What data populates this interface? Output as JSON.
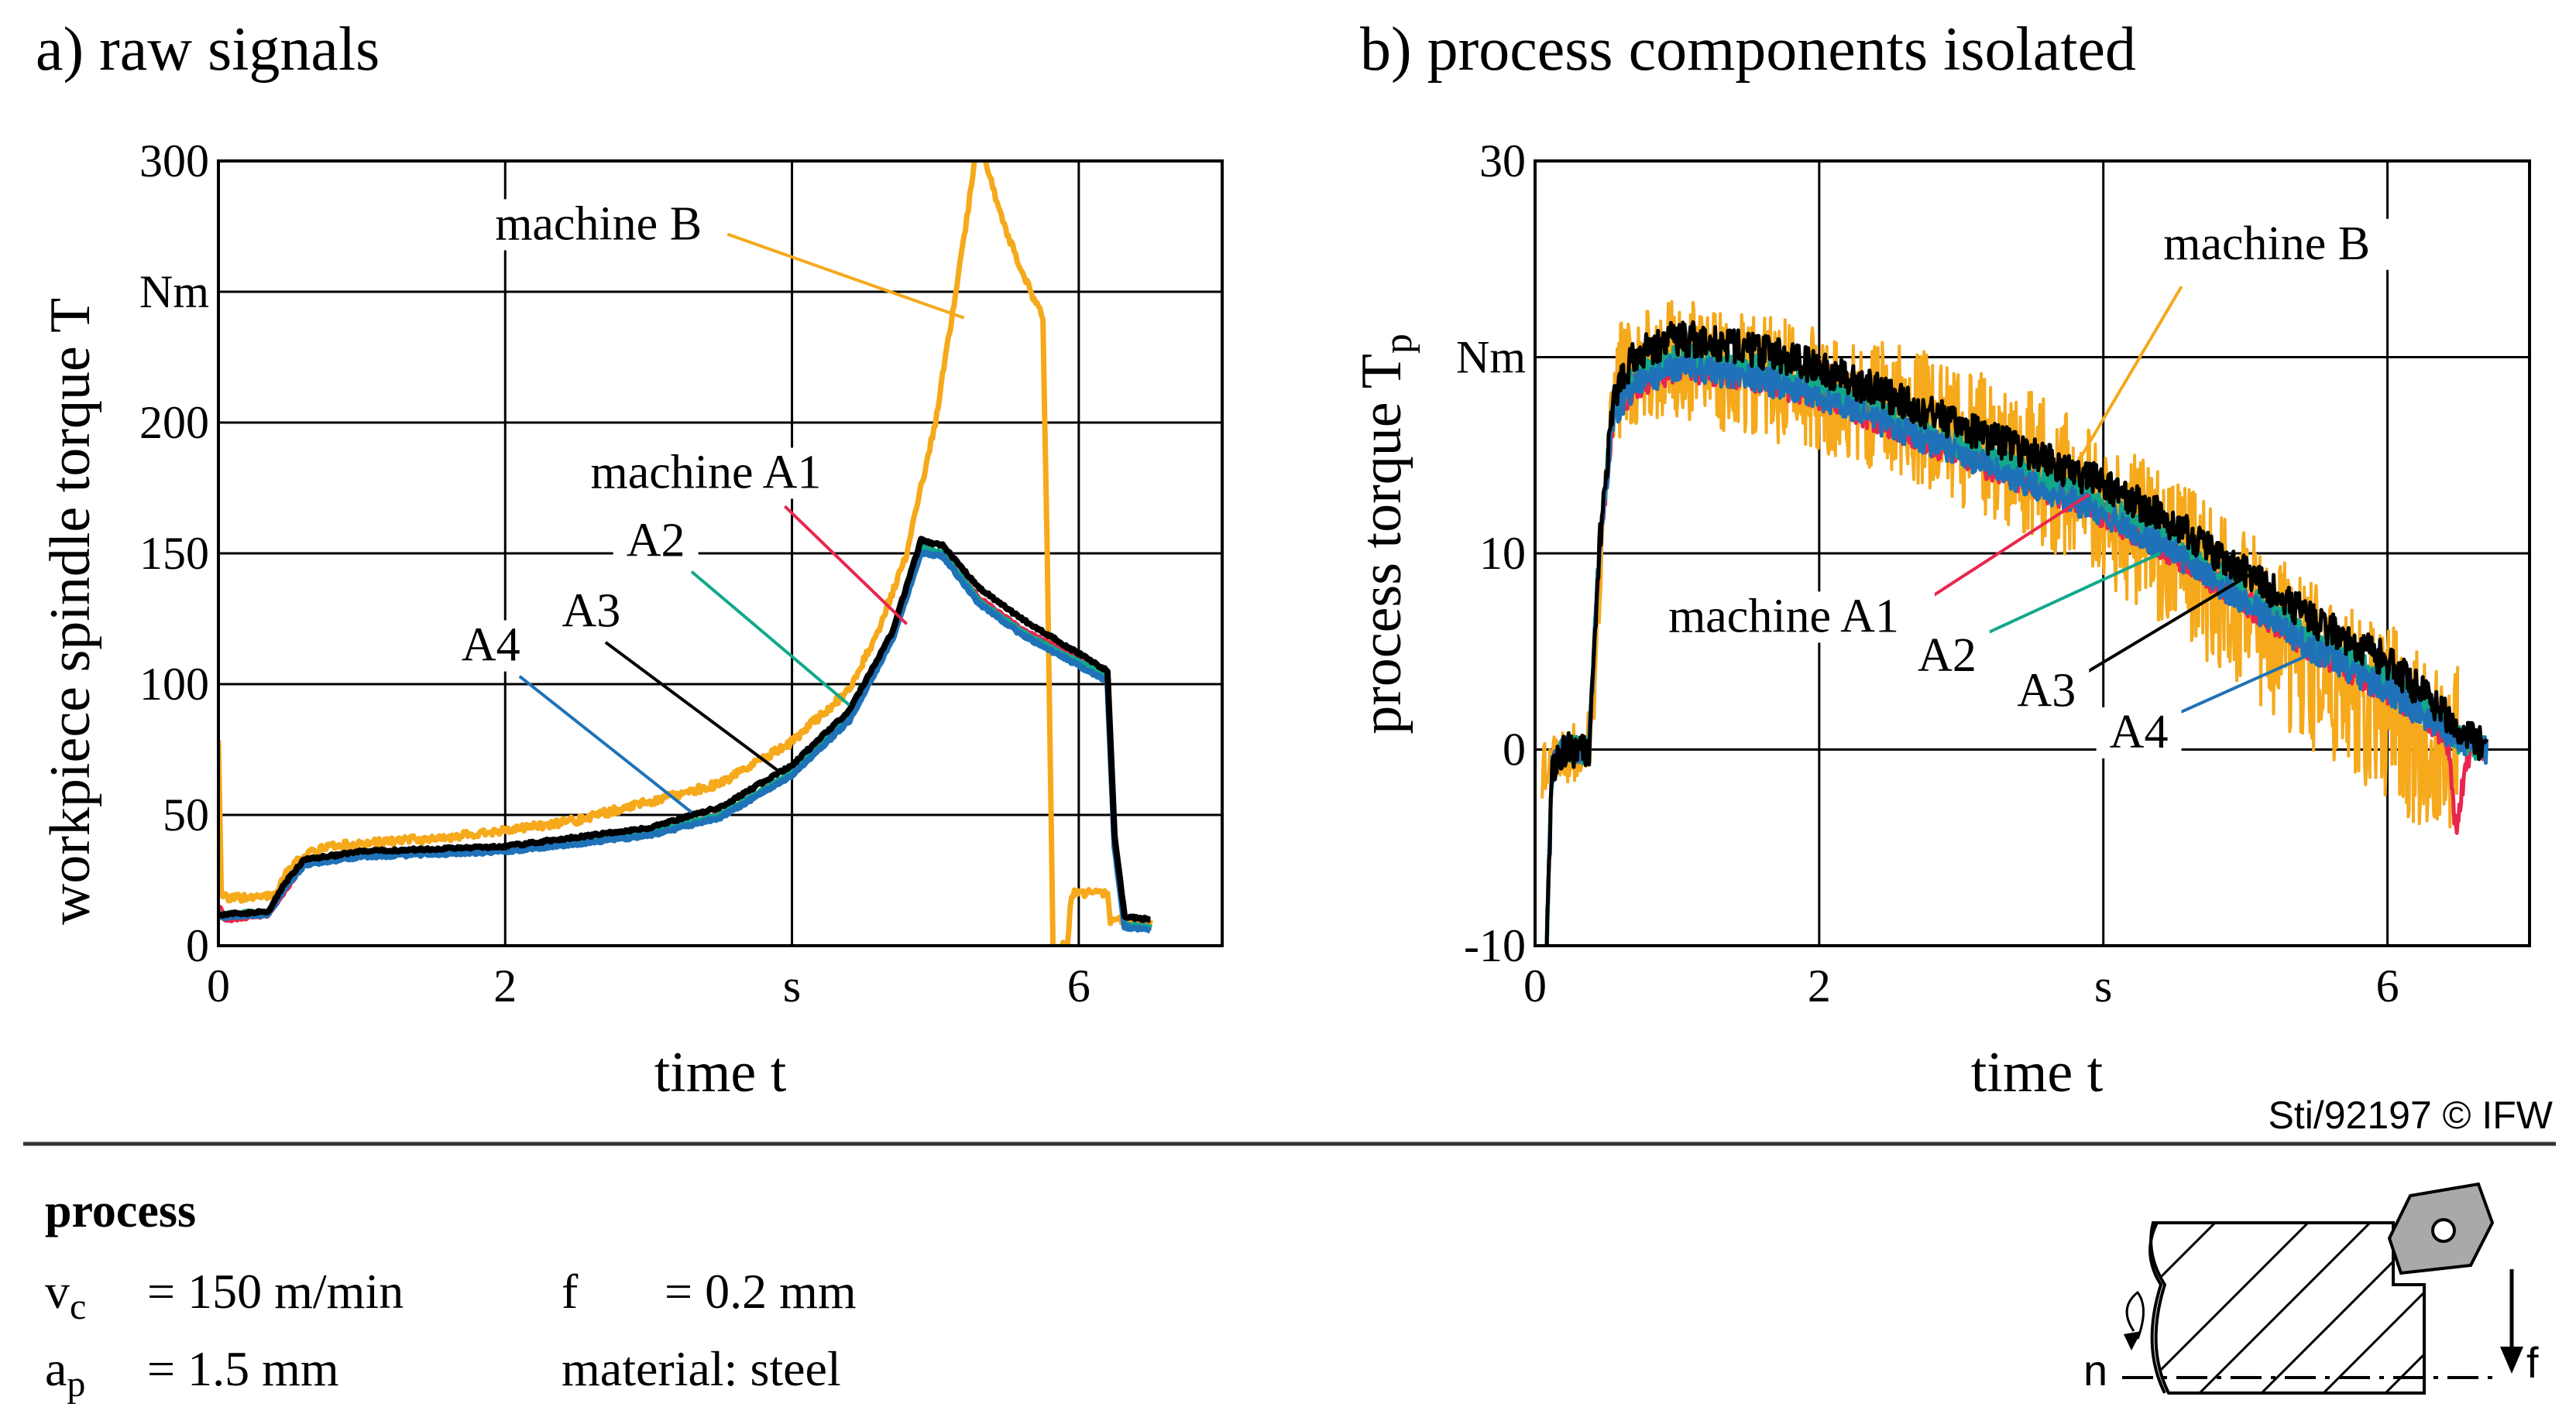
{
  "colors": {
    "machine_B": "#f5a91b",
    "machine_A1": "#e8264d",
    "A2": "#12a88a",
    "A3": "#000000",
    "A4": "#1f72b8",
    "grid": "#000000",
    "insert": "#a9a9a9"
  },
  "chart_data": [
    {
      "type": "line",
      "title": "a) raw signals",
      "xlabel": "time t",
      "xunit": "s",
      "ylabel": "workpiece spindle torque T",
      "yunit": "Nm",
      "xlim": [
        0,
        7
      ],
      "ylim": [
        0,
        300
      ],
      "xticks": [
        "0",
        "2",
        "s",
        "6"
      ],
      "yticks": [
        "0",
        "50",
        "100",
        "150",
        "200",
        "Nm",
        "300"
      ],
      "grid": true,
      "series": [
        {
          "name": "machine B",
          "color_key": "machine_B",
          "x": [
            0,
            0.02,
            0.06,
            0.4,
            0.45,
            0.6,
            0.8,
            1.0,
            1.5,
            2.0,
            2.5,
            3.0,
            3.5,
            4.0,
            4.4,
            4.6,
            4.8,
            5.0,
            5.2,
            5.3,
            5.45,
            5.6,
            5.75,
            5.78,
            5.82,
            5.92,
            5.95,
            6.2,
            6.22,
            6.5
          ],
          "y": [
            80,
            20,
            18,
            19,
            26,
            35,
            38,
            39,
            41,
            44,
            48,
            55,
            62,
            78,
            98,
            120,
            150,
            200,
            270,
            310,
            280,
            258,
            240,
            150,
            0,
            0,
            20,
            20,
            10,
            9
          ]
        },
        {
          "name": "machine A1",
          "color_key": "machine_A1",
          "x": [
            0,
            0.05,
            0.35,
            0.45,
            0.6,
            1.0,
            2.0,
            3.0,
            3.5,
            4.0,
            4.4,
            4.7,
            4.9,
            5.05,
            5.3,
            5.6,
            5.9,
            6.2,
            6.25,
            6.32,
            6.5
          ],
          "y": [
            15,
            10,
            12,
            20,
            32,
            35,
            37,
            43,
            50,
            66,
            87,
            118,
            151,
            150,
            133,
            121,
            112,
            104,
            40,
            8,
            7
          ]
        },
        {
          "name": "A2",
          "color_key": "A2",
          "x": [
            0,
            0.05,
            0.35,
            0.45,
            0.6,
            1.0,
            2.0,
            3.0,
            3.5,
            4.0,
            4.4,
            4.7,
            4.9,
            5.05,
            5.3,
            5.6,
            5.9,
            6.2,
            6.25,
            6.32,
            6.5
          ],
          "y": [
            12,
            12,
            13,
            22,
            32,
            35,
            37,
            43,
            50,
            66,
            87,
            118,
            152,
            150,
            132,
            120,
            111,
            103,
            40,
            8,
            7
          ]
        },
        {
          "name": "A3",
          "color_key": "A3",
          "x": [
            0,
            0.05,
            0.35,
            0.45,
            0.6,
            1.0,
            2.0,
            3.0,
            3.5,
            4.0,
            4.4,
            4.7,
            4.9,
            5.05,
            5.3,
            5.6,
            5.9,
            6.2,
            6.25,
            6.32,
            6.5
          ],
          "y": [
            12,
            12,
            13,
            23,
            33,
            36,
            38,
            45,
            53,
            69,
            90,
            120,
            155,
            153,
            137,
            125,
            115,
            105,
            42,
            11,
            10
          ]
        },
        {
          "name": "A4",
          "color_key": "A4",
          "x": [
            0,
            0.05,
            0.35,
            0.45,
            0.6,
            1.0,
            2.0,
            3.0,
            3.5,
            4.0,
            4.4,
            4.7,
            4.9,
            5.05,
            5.3,
            5.6,
            5.9,
            6.2,
            6.25,
            6.32,
            6.5
          ],
          "y": [
            11,
            11,
            12,
            21,
            31,
            34,
            36,
            42,
            49,
            65,
            86,
            117,
            150,
            149,
            131,
            119,
            110,
            101,
            38,
            7,
            6
          ]
        }
      ],
      "annotations": [
        {
          "text": "machine B",
          "series": "machine B"
        },
        {
          "text": "machine A1",
          "series": "machine A1"
        },
        {
          "text": "A2",
          "series": "A2"
        },
        {
          "text": "A3",
          "series": "A3"
        },
        {
          "text": "A4",
          "series": "A4"
        }
      ]
    },
    {
      "type": "line",
      "title": "b) process components isolated",
      "xlabel": "time t",
      "xunit": "s",
      "ylabel": "process torque T",
      "ylabel_subscript": "p",
      "yunit": "Nm",
      "xlim": [
        0,
        7
      ],
      "ylim": [
        -10,
        30
      ],
      "xticks": [
        "0",
        "2",
        "s",
        "6"
      ],
      "yticks": [
        "-10",
        "0",
        "10",
        "Nm",
        "30"
      ],
      "grid": true,
      "series": [
        {
          "name": "machine B",
          "color_key": "machine_B",
          "x": [
            0.05,
            0.3,
            0.4,
            0.5,
            0.6,
            1.0,
            1.5,
            2.0,
            2.5,
            3.0,
            3.5,
            4.0,
            4.5,
            5.0,
            5.5,
            6.0,
            6.3,
            6.5
          ],
          "y": [
            -1,
            0,
            1,
            14,
            19,
            20,
            19,
            18.5,
            17.5,
            16,
            14.5,
            12,
            10,
            7,
            4,
            2,
            0,
            0
          ],
          "noise": 4.5
        },
        {
          "name": "machine A1",
          "color_key": "machine_A1",
          "x": [
            0.08,
            0.12,
            0.2,
            0.38,
            0.45,
            0.55,
            0.7,
            1.0,
            1.5,
            2.0,
            2.5,
            3.0,
            3.5,
            4.0,
            4.5,
            5.0,
            5.5,
            6.0,
            6.3,
            6.42,
            6.48,
            6.55,
            6.6,
            6.7
          ],
          "y": [
            -10,
            -1,
            0,
            0,
            10,
            17,
            18.5,
            19.5,
            19,
            18,
            16.5,
            15,
            13.5,
            12,
            10,
            7.5,
            5,
            3,
            1.5,
            0.5,
            -4,
            -1,
            0.5,
            0
          ],
          "noise": 0.7
        },
        {
          "name": "A2",
          "color_key": "A2",
          "x": [
            0.08,
            0.12,
            0.2,
            0.38,
            0.45,
            0.55,
            0.7,
            1.0,
            1.5,
            2.0,
            2.5,
            3.0,
            3.5,
            4.0,
            4.5,
            5.0,
            5.5,
            6.0,
            6.3,
            6.5,
            6.7
          ],
          "y": [
            -10,
            -1,
            0,
            0,
            10,
            17.5,
            19,
            20,
            19.5,
            18.5,
            17,
            15.5,
            14,
            12.5,
            10.5,
            8,
            5.5,
            3.5,
            2,
            0.5,
            0
          ],
          "noise": 0.7
        },
        {
          "name": "A3",
          "color_key": "A3",
          "x": [
            0.08,
            0.12,
            0.2,
            0.38,
            0.45,
            0.55,
            0.7,
            1.0,
            1.5,
            2.0,
            2.5,
            3.0,
            3.5,
            4.0,
            4.5,
            5.0,
            5.5,
            6.0,
            6.3,
            6.5,
            6.7
          ],
          "y": [
            -10,
            -1,
            0,
            0,
            10,
            18,
            20,
            21,
            20.5,
            19.5,
            18,
            16.5,
            15,
            13.5,
            11.5,
            9,
            6.5,
            4.5,
            2.5,
            1,
            0
          ],
          "noise": 0.9
        },
        {
          "name": "A4",
          "color_key": "A4",
          "x": [
            0.08,
            0.12,
            0.2,
            0.38,
            0.45,
            0.55,
            0.7,
            1.0,
            1.5,
            2.0,
            2.5,
            3.0,
            3.5,
            4.0,
            4.5,
            5.0,
            5.5,
            6.0,
            6.3,
            6.5,
            6.7
          ],
          "y": [
            -10,
            -1,
            0,
            0,
            10,
            17,
            18.5,
            19.5,
            19,
            18,
            16.5,
            15,
            13.5,
            12,
            10,
            7.5,
            5,
            3,
            1.5,
            0.5,
            0
          ],
          "noise": 0.7
        }
      ],
      "annotations": [
        {
          "text": "machine B",
          "series": "machine B"
        },
        {
          "text": "machine A1",
          "series": "machine A1"
        },
        {
          "text": "A2",
          "series": "A2"
        },
        {
          "text": "A3",
          "series": "A3"
        },
        {
          "text": "A4",
          "series": "A4"
        }
      ]
    }
  ],
  "footer": {
    "credit": "Sti/92197 © IFW",
    "process_heading": "process",
    "vc_sym": "v",
    "vc_sub": "c",
    "vc_val": "= 150 m/min",
    "f_sym": "f",
    "f_val": "= 0.2 mm",
    "ap_sym": "a",
    "ap_sub": "p",
    "ap_val": "= 1.5 mm",
    "material": "material: steel",
    "diagram_n": "n",
    "diagram_f": "f"
  }
}
